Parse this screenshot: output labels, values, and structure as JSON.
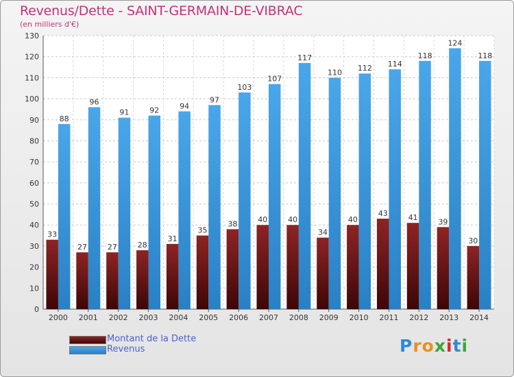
{
  "header": {
    "title": "Revenus/Dette - SAINT-GERMAIN-DE-VIBRAC",
    "subtitle": "(en milliers d'€)"
  },
  "legend": {
    "dette_label": "Montant de la Dette",
    "revenus_label": "Revenus"
  },
  "logo": {
    "text": "Proxiti"
  },
  "colors": {
    "dette": "#7a1a1a",
    "revenus": "#3b96dc",
    "title": "#c0327a",
    "legend_text": "#4a5fd0"
  },
  "chart_data": {
    "type": "bar",
    "categories": [
      "2000",
      "2001",
      "2002",
      "2003",
      "2004",
      "2005",
      "2006",
      "2007",
      "2008",
      "2009",
      "2010",
      "2011",
      "2012",
      "2013",
      "2014"
    ],
    "series": [
      {
        "name": "Montant de la Dette",
        "values": [
          33,
          27,
          27,
          28,
          31,
          35,
          38,
          40,
          40,
          34,
          40,
          43,
          41,
          39,
          30
        ]
      },
      {
        "name": "Revenus",
        "values": [
          88,
          96,
          91,
          92,
          94,
          97,
          103,
          107,
          117,
          110,
          112,
          114,
          118,
          124,
          118
        ]
      }
    ],
    "title": "Revenus/Dette - SAINT-GERMAIN-DE-VIBRAC",
    "subtitle": "(en milliers d'€)",
    "ylim": [
      0,
      130
    ],
    "yticks": [
      0,
      10,
      20,
      30,
      40,
      50,
      60,
      70,
      80,
      90,
      100,
      110,
      120,
      130
    ],
    "grid": true,
    "legend_position": "bottom-left"
  }
}
